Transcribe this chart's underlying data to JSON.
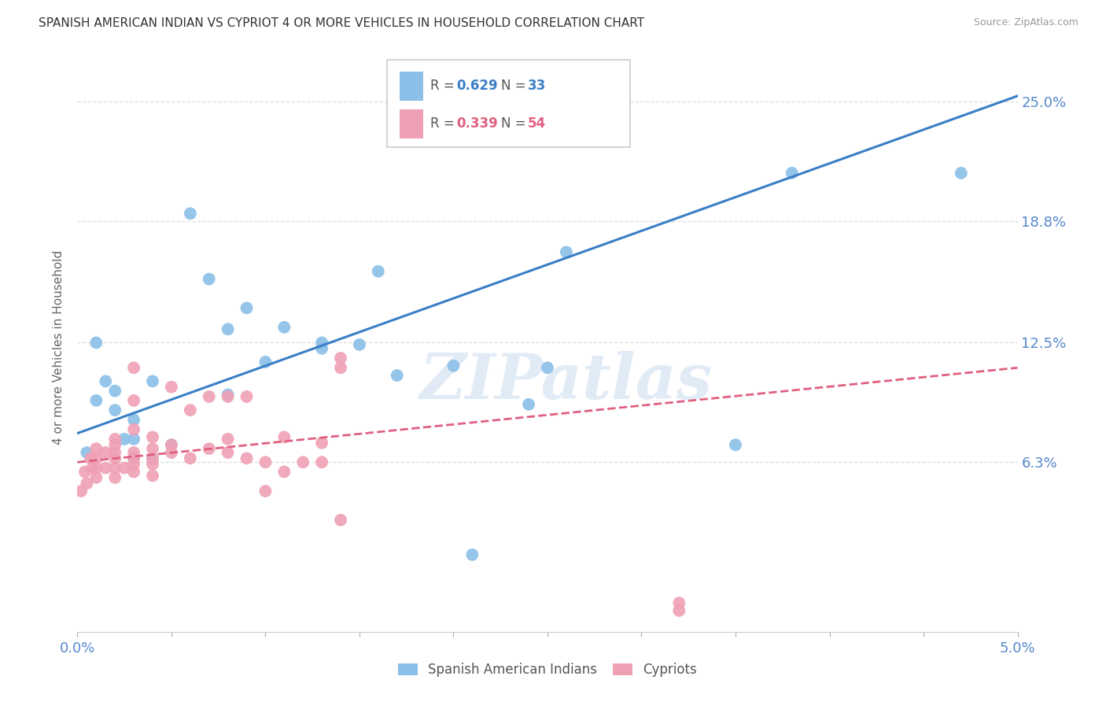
{
  "title": "SPANISH AMERICAN INDIAN VS CYPRIOT 4 OR MORE VEHICLES IN HOUSEHOLD CORRELATION CHART",
  "source": "Source: ZipAtlas.com",
  "ylabel": "4 or more Vehicles in Household",
  "xlim": [
    0.0,
    0.05
  ],
  "ylim": [
    -0.025,
    0.27
  ],
  "xtick_pos": [
    0.0,
    0.005,
    0.01,
    0.015,
    0.02,
    0.025,
    0.03,
    0.035,
    0.04,
    0.045,
    0.05
  ],
  "xtick_labels": [
    "0.0%",
    "",
    "",
    "",
    "",
    "",
    "",
    "",
    "",
    "",
    "5.0%"
  ],
  "ytick_positions": [
    0.063,
    0.125,
    0.188,
    0.25
  ],
  "ytick_labels": [
    "6.3%",
    "12.5%",
    "18.8%",
    "25.0%"
  ],
  "blue_color": "#8bbfe8",
  "pink_color": "#f0a0b5",
  "blue_line_color": "#3a7ec6",
  "pink_line_color": "#e06080",
  "watermark": "ZIPatlas",
  "blue_scatter_x": [
    0.0005,
    0.001,
    0.001,
    0.0015,
    0.002,
    0.002,
    0.0025,
    0.003,
    0.003,
    0.003,
    0.004,
    0.004,
    0.005,
    0.006,
    0.007,
    0.008,
    0.008,
    0.009,
    0.01,
    0.011,
    0.013,
    0.013,
    0.015,
    0.016,
    0.017,
    0.02,
    0.021,
    0.024,
    0.025,
    0.026,
    0.035,
    0.038,
    0.047
  ],
  "blue_scatter_y": [
    0.068,
    0.125,
    0.095,
    0.105,
    0.1,
    0.09,
    0.075,
    0.065,
    0.075,
    0.085,
    0.065,
    0.105,
    0.072,
    0.192,
    0.158,
    0.132,
    0.098,
    0.143,
    0.115,
    0.133,
    0.125,
    0.122,
    0.124,
    0.162,
    0.108,
    0.113,
    0.015,
    0.093,
    0.112,
    0.172,
    0.072,
    0.213,
    0.213
  ],
  "pink_scatter_x": [
    0.0002,
    0.0004,
    0.0005,
    0.0007,
    0.0008,
    0.001,
    0.001,
    0.001,
    0.001,
    0.0015,
    0.0015,
    0.002,
    0.002,
    0.002,
    0.002,
    0.002,
    0.002,
    0.0025,
    0.003,
    0.003,
    0.003,
    0.003,
    0.003,
    0.003,
    0.003,
    0.004,
    0.004,
    0.004,
    0.004,
    0.004,
    0.005,
    0.005,
    0.005,
    0.006,
    0.006,
    0.007,
    0.007,
    0.008,
    0.008,
    0.008,
    0.009,
    0.009,
    0.01,
    0.01,
    0.011,
    0.011,
    0.012,
    0.013,
    0.013,
    0.014,
    0.014,
    0.014,
    0.032,
    0.032
  ],
  "pink_scatter_y": [
    0.048,
    0.058,
    0.052,
    0.065,
    0.06,
    0.055,
    0.06,
    0.065,
    0.07,
    0.06,
    0.068,
    0.055,
    0.06,
    0.065,
    0.068,
    0.072,
    0.075,
    0.06,
    0.058,
    0.062,
    0.065,
    0.068,
    0.08,
    0.095,
    0.112,
    0.056,
    0.062,
    0.065,
    0.07,
    0.076,
    0.068,
    0.072,
    0.102,
    0.065,
    0.09,
    0.07,
    0.097,
    0.068,
    0.075,
    0.097,
    0.065,
    0.097,
    0.048,
    0.063,
    0.076,
    0.058,
    0.063,
    0.073,
    0.063,
    0.033,
    0.112,
    0.117,
    -0.01,
    -0.014
  ],
  "blue_line_x0": 0.0,
  "blue_line_y0": 0.078,
  "blue_line_x1": 0.05,
  "blue_line_y1": 0.253,
  "pink_line_x0": 0.0,
  "pink_line_y0": 0.063,
  "pink_line_x1": 0.05,
  "pink_line_y1": 0.112,
  "background_color": "#ffffff",
  "grid_color": "#dddddd"
}
